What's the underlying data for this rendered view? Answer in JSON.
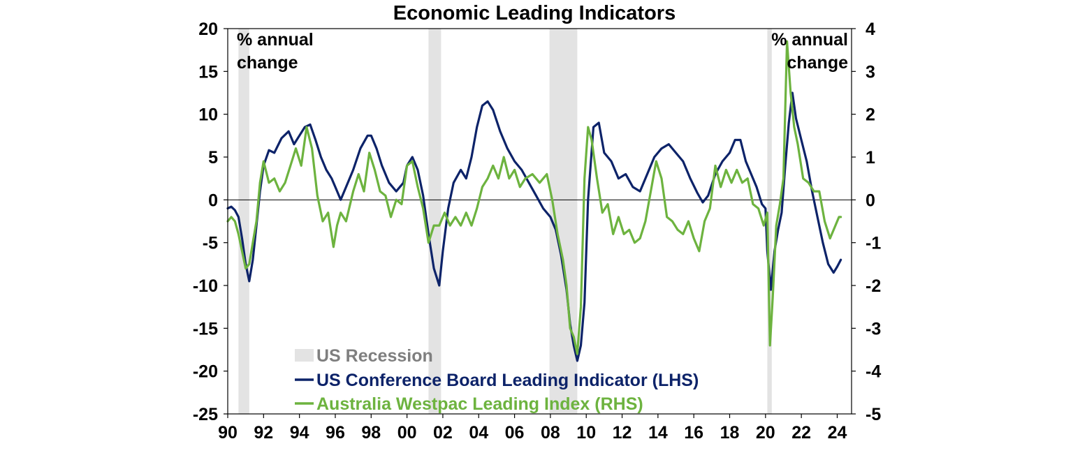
{
  "chart_data": {
    "type": "line",
    "title": "Economic Leading Indicators",
    "left_unit_label": [
      "% annual",
      "change"
    ],
    "right_unit_label": [
      "% annual",
      "change"
    ],
    "x_axis": {
      "range": [
        1990,
        2024.8
      ],
      "ticks": [
        1990,
        1992,
        1994,
        1996,
        1998,
        2000,
        2002,
        2004,
        2006,
        2008,
        2010,
        2012,
        2014,
        2016,
        2018,
        2020,
        2022,
        2024
      ],
      "tick_labels": [
        "90",
        "92",
        "94",
        "96",
        "98",
        "00",
        "02",
        "04",
        "06",
        "08",
        "10",
        "12",
        "14",
        "16",
        "18",
        "20",
        "22",
        "24"
      ]
    },
    "y_left": {
      "range": [
        -25,
        20
      ],
      "ticks": [
        20,
        15,
        10,
        5,
        0,
        -5,
        -10,
        -15,
        -20,
        -25
      ],
      "tick_labels": [
        "20",
        "15",
        "10",
        "5",
        "0",
        "-5",
        "-10",
        "-15",
        "-20",
        "-25"
      ]
    },
    "y_right": {
      "range": [
        -5,
        4
      ],
      "ticks": [
        4,
        3,
        2,
        1,
        0,
        -1,
        -2,
        -3,
        -4,
        -5
      ],
      "tick_labels": [
        "4",
        "3",
        "2",
        "1",
        "0",
        "-1",
        "-2",
        "-3",
        "-4",
        "-5"
      ]
    },
    "grid": false,
    "legend_placement": "bottom-left",
    "recession_label": "US Recession",
    "recessions": [
      [
        1990.6,
        1991.2
      ],
      [
        2001.2,
        2001.9
      ],
      [
        2007.95,
        2009.5
      ],
      [
        2020.1,
        2020.35
      ]
    ],
    "colors": {
      "us": "#0d2369",
      "aus": "#6db33f",
      "recession": "#e3e3e3",
      "recession_text": "#7f7f7f"
    },
    "series": [
      {
        "name": "US Conference Board Leading Indicator (LHS)",
        "axis": "left",
        "x": [
          1990.0,
          1990.2,
          1990.4,
          1990.6,
          1990.8,
          1991.0,
          1991.2,
          1991.4,
          1991.6,
          1991.8,
          1992.0,
          1992.3,
          1992.6,
          1993.0,
          1993.4,
          1993.7,
          1994.0,
          1994.3,
          1994.6,
          1994.9,
          1995.2,
          1995.5,
          1995.8,
          1996.0,
          1996.3,
          1996.6,
          1997.0,
          1997.4,
          1997.8,
          1998.0,
          1998.3,
          1998.6,
          1999.0,
          1999.4,
          1999.8,
          2000.0,
          2000.3,
          2000.6,
          2000.9,
          2001.2,
          2001.5,
          2001.8,
          2002.0,
          2002.3,
          2002.6,
          2003.0,
          2003.3,
          2003.6,
          2003.9,
          2004.2,
          2004.5,
          2004.8,
          2005.2,
          2005.6,
          2006.0,
          2006.4,
          2006.8,
          2007.2,
          2007.6,
          2008.0,
          2008.3,
          2008.6,
          2008.9,
          2009.1,
          2009.3,
          2009.5,
          2009.7,
          2009.9,
          2010.1,
          2010.4,
          2010.7,
          2011.0,
          2011.4,
          2011.8,
          2012.2,
          2012.6,
          2013.0,
          2013.4,
          2013.8,
          2014.2,
          2014.6,
          2015.0,
          2015.4,
          2015.8,
          2016.2,
          2016.5,
          2016.8,
          2017.2,
          2017.6,
          2018.0,
          2018.3,
          2018.6,
          2018.9,
          2019.2,
          2019.5,
          2019.8,
          2020.0,
          2020.1,
          2020.3,
          2020.5,
          2020.7,
          2020.9,
          2021.1,
          2021.3,
          2021.5,
          2021.7,
          2022.0,
          2022.3,
          2022.6,
          2022.9,
          2023.2,
          2023.5,
          2023.8,
          2024.0,
          2024.2
        ],
        "values": [
          -1.0,
          -0.8,
          -1.2,
          -2.0,
          -4.5,
          -7.5,
          -9.5,
          -7.0,
          -3.0,
          1.0,
          4.0,
          5.8,
          5.5,
          7.2,
          8.0,
          6.5,
          7.5,
          8.5,
          8.8,
          7.0,
          5.0,
          3.5,
          2.5,
          1.5,
          0.0,
          1.5,
          3.5,
          6.0,
          7.5,
          7.5,
          6.0,
          4.0,
          2.0,
          1.0,
          2.0,
          4.0,
          5.0,
          3.5,
          0.5,
          -4.0,
          -8.0,
          -10.0,
          -6.0,
          -1.0,
          2.0,
          3.5,
          2.5,
          5.0,
          8.5,
          11.0,
          11.5,
          10.5,
          8.0,
          6.0,
          4.5,
          3.5,
          2.0,
          0.5,
          -1.0,
          -2.0,
          -3.5,
          -6.5,
          -10.5,
          -14.5,
          -17.0,
          -18.8,
          -17.0,
          -12.0,
          0.0,
          8.5,
          9.0,
          5.5,
          4.5,
          2.5,
          3.0,
          1.5,
          1.0,
          3.0,
          5.0,
          6.0,
          6.5,
          5.5,
          4.5,
          2.5,
          0.8,
          -0.3,
          0.5,
          3.0,
          4.5,
          5.5,
          7.0,
          7.0,
          4.5,
          3.0,
          1.5,
          -0.5,
          -1.0,
          -6.0,
          -10.5,
          -6.0,
          -3.5,
          -1.5,
          4.0,
          9.0,
          12.5,
          9.5,
          7.0,
          4.5,
          1.0,
          -2.0,
          -5.0,
          -7.5,
          -8.5,
          -7.8,
          -7.0
        ]
      },
      {
        "name": "Australia Westpac Leading Index (RHS)",
        "axis": "right",
        "x": [
          1990.0,
          1990.2,
          1990.4,
          1990.6,
          1990.8,
          1991.0,
          1991.2,
          1991.4,
          1991.6,
          1991.8,
          1992.0,
          1992.3,
          1992.6,
          1992.9,
          1993.2,
          1993.5,
          1993.8,
          1994.1,
          1994.4,
          1994.7,
          1995.0,
          1995.3,
          1995.6,
          1995.9,
          1996.1,
          1996.3,
          1996.6,
          1997.0,
          1997.3,
          1997.6,
          1997.9,
          1998.2,
          1998.5,
          1998.8,
          1999.1,
          1999.4,
          1999.7,
          2000.0,
          2000.3,
          2000.6,
          2000.9,
          2001.2,
          2001.5,
          2001.8,
          2002.1,
          2002.4,
          2002.7,
          2003.0,
          2003.3,
          2003.6,
          2003.9,
          2004.2,
          2004.5,
          2004.8,
          2005.1,
          2005.4,
          2005.7,
          2006.0,
          2006.3,
          2006.6,
          2007.0,
          2007.4,
          2007.8,
          2008.1,
          2008.4,
          2008.7,
          2008.9,
          2009.1,
          2009.3,
          2009.5,
          2009.7,
          2009.9,
          2010.1,
          2010.3,
          2010.6,
          2010.9,
          2011.2,
          2011.5,
          2011.8,
          2012.1,
          2012.4,
          2012.7,
          2013.0,
          2013.3,
          2013.6,
          2013.9,
          2014.2,
          2014.5,
          2014.8,
          2015.1,
          2015.4,
          2015.7,
          2016.0,
          2016.3,
          2016.6,
          2016.9,
          2017.2,
          2017.5,
          2017.8,
          2018.1,
          2018.4,
          2018.7,
          2019.0,
          2019.3,
          2019.6,
          2019.9,
          2020.1,
          2020.25,
          2020.4,
          2020.6,
          2020.8,
          2021.0,
          2021.2,
          2021.4,
          2021.6,
          2021.8,
          2022.1,
          2022.4,
          2022.7,
          2023.0,
          2023.3,
          2023.6,
          2023.9,
          2024.1,
          2024.2
        ],
        "values": [
          -0.5,
          -0.4,
          -0.5,
          -0.8,
          -1.2,
          -1.6,
          -1.5,
          -1.0,
          -0.5,
          0.4,
          0.9,
          0.4,
          0.5,
          0.2,
          0.4,
          0.8,
          1.2,
          0.8,
          1.7,
          1.2,
          0.1,
          -0.5,
          -0.3,
          -1.1,
          -0.6,
          -0.3,
          -0.5,
          0.2,
          0.6,
          0.2,
          1.1,
          0.7,
          0.2,
          0.1,
          -0.4,
          0.0,
          -0.1,
          0.8,
          0.9,
          0.3,
          -0.2,
          -1.0,
          -0.6,
          -0.6,
          -0.3,
          -0.6,
          -0.4,
          -0.6,
          -0.3,
          -0.6,
          -0.2,
          0.3,
          0.5,
          0.8,
          0.5,
          1.0,
          0.5,
          0.7,
          0.3,
          0.5,
          0.6,
          0.4,
          0.6,
          0.0,
          -0.8,
          -1.4,
          -2.0,
          -3.0,
          -3.2,
          -3.6,
          -2.5,
          0.5,
          1.7,
          1.4,
          0.5,
          -0.3,
          -0.1,
          -0.8,
          -0.4,
          -0.8,
          -0.7,
          -1.0,
          -0.9,
          -0.5,
          0.2,
          0.9,
          0.5,
          -0.4,
          -0.5,
          -0.7,
          -0.8,
          -0.5,
          -0.9,
          -1.2,
          -0.5,
          -0.2,
          0.8,
          0.3,
          0.7,
          0.4,
          0.7,
          0.4,
          0.5,
          -0.1,
          -0.2,
          -0.6,
          -0.3,
          -3.4,
          -2.3,
          -0.6,
          -0.1,
          0.5,
          3.7,
          2.5,
          1.7,
          1.3,
          0.5,
          0.4,
          0.2,
          0.2,
          -0.5,
          -0.9,
          -0.6,
          -0.4,
          -0.4
        ]
      }
    ]
  }
}
